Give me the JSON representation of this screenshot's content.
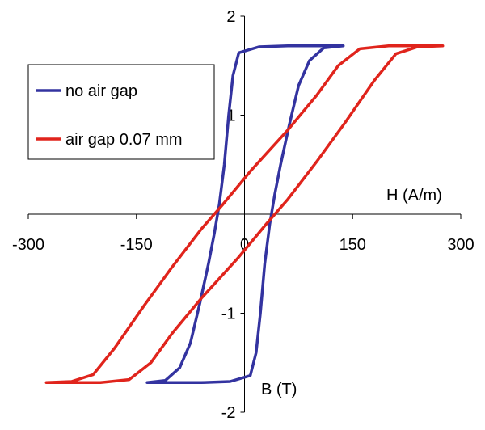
{
  "chart_data": {
    "type": "line",
    "title": "",
    "xlabel": "H (A/m)",
    "ylabel": "B (T)",
    "xlim": [
      -300,
      300
    ],
    "ylim": [
      -2,
      2
    ],
    "xticks": [
      -300,
      -150,
      0,
      150,
      300
    ],
    "yticks": [
      -2,
      -1,
      0,
      1,
      2
    ],
    "xtick_labels": [
      "-300",
      "-150",
      "0",
      "150",
      "300"
    ],
    "ytick_labels": [
      "-2",
      "-1",
      "0",
      "1",
      "2"
    ],
    "grid": false,
    "legend_position": "top-left",
    "series": [
      {
        "name": "no air gap",
        "color": "#3333a0",
        "points": [
          [
            137,
            1.7
          ],
          [
            110,
            1.68
          ],
          [
            90,
            1.55
          ],
          [
            75,
            1.3
          ],
          [
            62,
            0.9
          ],
          [
            50,
            0.5
          ],
          [
            42,
            0.2
          ],
          [
            35,
            -0.1
          ],
          [
            28,
            -0.5
          ],
          [
            22,
            -1.0
          ],
          [
            16,
            -1.4
          ],
          [
            8,
            -1.63
          ],
          [
            -20,
            -1.69
          ],
          [
            -60,
            -1.7
          ],
          [
            -107,
            -1.7
          ],
          [
            -135,
            -1.7
          ],
          [
            -110,
            -1.68
          ],
          [
            -90,
            -1.55
          ],
          [
            -75,
            -1.3
          ],
          [
            -62,
            -0.9
          ],
          [
            -50,
            -0.5
          ],
          [
            -42,
            -0.2
          ],
          [
            -35,
            0.1
          ],
          [
            -28,
            0.5
          ],
          [
            -22,
            1.0
          ],
          [
            -16,
            1.4
          ],
          [
            -8,
            1.63
          ],
          [
            20,
            1.69
          ],
          [
            60,
            1.7
          ],
          [
            107,
            1.7
          ],
          [
            137,
            1.7
          ]
        ]
      },
      {
        "name": "air gap 0.07 mm",
        "color": "#e0241c",
        "points": [
          [
            275,
            1.7
          ],
          [
            240,
            1.69
          ],
          [
            210,
            1.62
          ],
          [
            180,
            1.35
          ],
          [
            140,
            0.93
          ],
          [
            100,
            0.53
          ],
          [
            60,
            0.15
          ],
          [
            30,
            -0.1
          ],
          [
            -10,
            -0.45
          ],
          [
            -60,
            -0.85
          ],
          [
            -100,
            -1.2
          ],
          [
            -130,
            -1.5
          ],
          [
            -160,
            -1.67
          ],
          [
            -200,
            -1.7
          ],
          [
            -275,
            -1.7
          ],
          [
            -240,
            -1.69
          ],
          [
            -210,
            -1.62
          ],
          [
            -180,
            -1.35
          ],
          [
            -140,
            -0.93
          ],
          [
            -100,
            -0.53
          ],
          [
            -60,
            -0.15
          ],
          [
            -30,
            0.1
          ],
          [
            10,
            0.45
          ],
          [
            60,
            0.85
          ],
          [
            100,
            1.2
          ],
          [
            130,
            1.5
          ],
          [
            160,
            1.67
          ],
          [
            200,
            1.7
          ],
          [
            275,
            1.7
          ]
        ]
      }
    ]
  }
}
